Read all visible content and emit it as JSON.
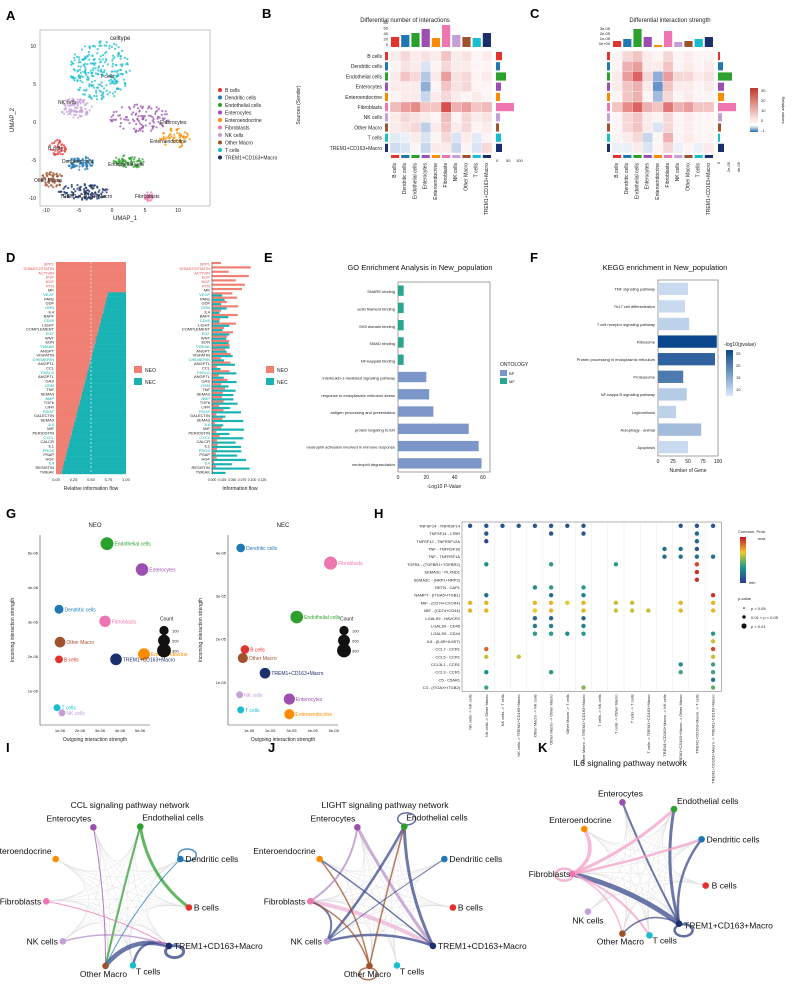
{
  "panels": [
    "A",
    "B",
    "C",
    "D",
    "E",
    "F",
    "G",
    "H",
    "I",
    "J",
    "K"
  ],
  "colors": {
    "B cells": "#e4332f",
    "Dendritic cells": "#1f77b4",
    "Endothelial cells": "#2ca02c",
    "Enterocytes": "#9b4fb0",
    "Enteroendocrine": "#ff8c00",
    "Fibroblasts": "#ef75b0",
    "NK cells": "#c5a0d8",
    "Other Macro": "#a0522d",
    "T cells": "#17becf",
    "TREM1+CD163+Macro": "#1a2f6b"
  },
  "cell_types": [
    "B cells",
    "Dendritic cells",
    "Endothelial cells",
    "Enterocytes",
    "Enteroendocrine",
    "Fibroblasts",
    "NK cells",
    "Other Macro",
    "T cells",
    "TREM1+CD163+Macro"
  ],
  "panelA": {
    "title": "celltype",
    "xlabel": "UMAP_1",
    "ylabel": "UMAP_2",
    "xticks": [
      "-10",
      "-5",
      "0",
      "5",
      "10"
    ],
    "yticks": [
      "-10",
      "-5",
      "0",
      "5",
      "10"
    ],
    "cluster_labels": [
      "T cells",
      "NK cells",
      "Enterocytes",
      "Enteroendocrine",
      "B cells",
      "Dendritic cells",
      "Endothelial cells",
      "Other Macro",
      "TREM1+CD163+Macro",
      "Fibroblasts"
    ]
  },
  "panelB": {
    "title": "Differential number of interactions",
    "ylabel": "Sources (Sender)",
    "top_ticks": [
      "80",
      "60",
      "40",
      "20",
      "0"
    ],
    "right_ticks": [
      "0",
      "50",
      "100"
    ]
  },
  "panelC": {
    "title": "Differential interaction strength",
    "top_ticks": [
      "3e-05",
      "2e-05",
      "1e-05",
      "0e+00"
    ],
    "right_ticks": [
      "0",
      "2e-05",
      "4e-05"
    ],
    "legend_title": "Relative values",
    "legend_ticks": [
      "30",
      "20",
      "10",
      "0",
      "-1"
    ]
  },
  "panelD": {
    "xlabel_left": "Relative information flow",
    "xlabel_right": "Information flow",
    "xticks_left": [
      "0.00",
      "0.25",
      "0.50",
      "0.75",
      "1.00"
    ],
    "xticks_right": [
      "0.000",
      "0.025",
      "0.050",
      "0.075",
      "0.100",
      "0.125"
    ],
    "legend": [
      "NEO",
      "NEC"
    ],
    "pathways": [
      "SPP1",
      "SOMATOSTATIN",
      "ACTIVIN",
      "EGF",
      "NGF",
      "PTN",
      "MK",
      "VEGF",
      "PARs",
      "GDF",
      "GRN",
      "IL4",
      "BAFF",
      "CD40",
      "LIGHT",
      "COMPLEMENT",
      "EGF",
      "WNT",
      "EDN",
      "TWEAK",
      "ANGPT",
      "VISFATIN",
      "CHEMERIN",
      "ANGPTL",
      "CCL",
      "FASLG",
      "ANGPTL",
      "GAS",
      "OSM",
      "TNF",
      "SEMA3",
      "BMP",
      "TGFb",
      "LIFR",
      "PDGF",
      "GALECTIN",
      "SEMA3",
      "IL6",
      "MIF",
      "PERIOSTIN",
      "CXCL",
      "CALCR",
      "IL1",
      "PROS",
      "PSAP",
      "HGF",
      "IL4",
      "RESISTIN",
      "TWEAK"
    ]
  },
  "panelE": {
    "title": "GO Enrichment Analysis in New_population",
    "xlabel": "-Log10 P-Value",
    "xticks": [
      "0",
      "20",
      "40",
      "60"
    ],
    "legend_title": "ONTOLOGY",
    "legend": [
      "BP",
      "MF"
    ],
    "terms": [
      {
        "name": "SNARE binding",
        "value": 4,
        "ont": "MF"
      },
      {
        "name": "actin filament binding",
        "value": 4,
        "ont": "MF"
      },
      {
        "name": "SH3 domain binding",
        "value": 4,
        "ont": "MF"
      },
      {
        "name": "SMAD binding",
        "value": 4,
        "ont": "MF"
      },
      {
        "name": "NF-kappaB binding",
        "value": 4,
        "ont": "MF"
      },
      {
        "name": "interleukin-1-mediated signaling pathway",
        "value": 20,
        "ont": "BP"
      },
      {
        "name": "response to endoplasmic reticulum stress",
        "value": 22,
        "ont": "BP"
      },
      {
        "name": "antigen processing and presentation",
        "value": 25,
        "ont": "BP"
      },
      {
        "name": "protein targeting to ER",
        "value": 50,
        "ont": "BP"
      },
      {
        "name": "neutrophil activation involved in immune response",
        "value": 57,
        "ont": "BP"
      },
      {
        "name": "neutrophil degranulation",
        "value": 59,
        "ont": "BP"
      }
    ]
  },
  "panelF": {
    "title": "KEGG enrichment in New_population",
    "xlabel": "Number of Gene",
    "xticks": [
      "0",
      "25",
      "50",
      "75",
      "100"
    ],
    "legend_title": "-log10(pvalue)",
    "legend_ticks": [
      "25",
      "20",
      "15",
      "10"
    ],
    "terms": [
      {
        "name": "TNF signaling pathway",
        "value": 50,
        "p": 7
      },
      {
        "name": "Th17 cell differentiation",
        "value": 45,
        "p": 7
      },
      {
        "name": "T cell receptor signaling pathway",
        "value": 52,
        "p": 8
      },
      {
        "name": "Ribosome",
        "value": 98,
        "p": 27
      },
      {
        "name": "Protein processing in endoplasmic reticulum",
        "value": 95,
        "p": 23
      },
      {
        "name": "Proteasome",
        "value": 42,
        "p": 20
      },
      {
        "name": "NF-kappa B signaling pathway",
        "value": 48,
        "p": 9
      },
      {
        "name": "Legionellosis",
        "value": 30,
        "p": 8
      },
      {
        "name": "Autophagy - animal",
        "value": 72,
        "p": 11
      },
      {
        "name": "Apoptosis",
        "value": 50,
        "p": 7
      }
    ]
  },
  "panelG": {
    "xlabel": "Outgoing interaction strength",
    "ylabel": "Incoming interaction strength",
    "legend_title": "Count",
    "legend_sizes": [
      "100",
      "200",
      "300"
    ],
    "neo": {
      "title": "NEO",
      "xticks": [
        "1e-06",
        "2e-06",
        "3e-06",
        "4e-06",
        "5e-06"
      ],
      "yticks": [
        "1e-06",
        "2e-06",
        "3e-06",
        "4e-06",
        "5e-06"
      ],
      "points": [
        {
          "name": "Endothelial cells",
          "x": 3.35,
          "y": 5.25,
          "count": 250
        },
        {
          "name": "Enterocytes",
          "x": 5.1,
          "y": 4.5,
          "count": 230
        },
        {
          "name": "Dendritic cells",
          "x": 0.95,
          "y": 3.35,
          "count": 90
        },
        {
          "name": "Fibroblasts",
          "x": 3.25,
          "y": 3.0,
          "count": 180
        },
        {
          "name": "Other Macro",
          "x": 1.0,
          "y": 2.4,
          "count": 150
        },
        {
          "name": "Enteroendocrine",
          "x": 5.2,
          "y": 2.05,
          "count": 200
        },
        {
          "name": "B cells",
          "x": 0.95,
          "y": 1.9,
          "count": 60
        },
        {
          "name": "TREM1+CD163+Macro",
          "x": 3.8,
          "y": 1.9,
          "count": 190
        },
        {
          "name": "T cells",
          "x": 0.85,
          "y": 0.5,
          "count": 40
        },
        {
          "name": "NK cells",
          "x": 1.1,
          "y": 0.35,
          "count": 40
        }
      ]
    },
    "nec": {
      "title": "NEC",
      "xticks": [
        "1e-05",
        "2e-05",
        "3e-05",
        "4e-05",
        "5e-05"
      ],
      "yticks": [
        "1e-05",
        "2e-05",
        "3e-05",
        "4e-05"
      ],
      "points": [
        {
          "name": "Dendritic cells",
          "x": 0.6,
          "y": 4.1,
          "count": 80
        },
        {
          "name": "Fibroblasts",
          "x": 4.85,
          "y": 3.75,
          "count": 260
        },
        {
          "name": "Endothelial cells",
          "x": 3.25,
          "y": 2.5,
          "count": 240
        },
        {
          "name": "B cells",
          "x": 0.8,
          "y": 1.75,
          "count": 80
        },
        {
          "name": "Other Macro",
          "x": 0.7,
          "y": 1.55,
          "count": 130
        },
        {
          "name": "TREM1+CD163+Macro",
          "x": 1.75,
          "y": 1.2,
          "count": 150
        },
        {
          "name": "NK cells",
          "x": 0.55,
          "y": 0.7,
          "count": 40
        },
        {
          "name": "Enterocytes",
          "x": 2.9,
          "y": 0.6,
          "count": 170
        },
        {
          "name": "T cells",
          "x": 0.6,
          "y": 0.35,
          "count": 40
        },
        {
          "name": "Enteroendocrine",
          "x": 2.9,
          "y": 0.25,
          "count": 130
        }
      ]
    }
  },
  "panelH": {
    "rows": [
      "TNFSF14 - TNFRSF14",
      "TNFSF14 - LTBR",
      "TNFSF12 - TNFRSF12A",
      "TNF - TNFRSF1B",
      "TNF - TNFRSF1A",
      "TGFB1 - (TGFBR1+TGFBR2)",
      "SEMA3C - PLXND1",
      "SEMA3C - (NRP1+NRP2)",
      "RETN - CAP1",
      "NAMPT - (ITGA5+ITGB1)",
      "MIF - (CD74+CXCR4)",
      "MIF - (CD74+CD44)",
      "LGALS9 - HAVCR2",
      "LGALS9 - CD45",
      "LGALS9 - CD44",
      "IL6 - (IL6R+IL6ST)",
      "CCL7 - CCR1",
      "CCL5 - CCR1",
      "CCL3L1 - CCR1",
      "CCL3 - CCR1",
      "C5 - C5AR1",
      "C3 - (ITGAX+ITGB2)"
    ],
    "cols": [
      "NK cells -> NK cells",
      "NK cells -> Other Macro",
      "NK cells -> T cells",
      "NK cells -> TREM1+CD163+Macro",
      "Other Macro -> NK cells",
      "Other Macro -> Other Macro",
      "Other Macro -> T cells",
      "Other Macro -> TREM1+CD163+Macro",
      "T cells -> NK cells",
      "T cells -> Other Macro",
      "T cells -> T cells",
      "T cells -> TREM1+CD163+Macro",
      "TREM1+CD163+Macro -> NK cells",
      "TREM1+CD163+Macro -> Other Macro",
      "TREM1+CD163+Macro -> T cells",
      "TREM1+CD163+Macro -> TREM1+CD163+Macro"
    ],
    "legend_title": "Commun. Prob.",
    "legend_max": "max",
    "legend_min": "min",
    "pvalue_title": "p-value",
    "pvalue_labels": [
      "p > 0.05",
      "0.01 < p < 0.05",
      "p < 0.01"
    ],
    "dots": [
      [
        0,
        0,
        0.1
      ],
      [
        0,
        1,
        0.1
      ],
      [
        0,
        2,
        0.1
      ],
      [
        0,
        3,
        0.1
      ],
      [
        0,
        4,
        0.1
      ],
      [
        0,
        5,
        0.1
      ],
      [
        0,
        6,
        0.1
      ],
      [
        0,
        7,
        0.1
      ],
      [
        0,
        13,
        0.1
      ],
      [
        0,
        14,
        0.1
      ],
      [
        0,
        15,
        0.1
      ],
      [
        1,
        1,
        0.1
      ],
      [
        1,
        5,
        0.1
      ],
      [
        1,
        7,
        0.1
      ],
      [
        1,
        14,
        0.15
      ],
      [
        2,
        1,
        0.05
      ],
      [
        2,
        14,
        0.15
      ],
      [
        3,
        12,
        0.2
      ],
      [
        3,
        13,
        0.2
      ],
      [
        3,
        14,
        0.1
      ],
      [
        4,
        12,
        0.2
      ],
      [
        4,
        13,
        0.2
      ],
      [
        4,
        14,
        0.2
      ],
      [
        4,
        15,
        0.2
      ],
      [
        5,
        1,
        0.3
      ],
      [
        5,
        5,
        0.35
      ],
      [
        5,
        9,
        0.35
      ],
      [
        5,
        14,
        0.9
      ],
      [
        6,
        14,
        0.95
      ],
      [
        7,
        14,
        0.95
      ],
      [
        8,
        4,
        0.3
      ],
      [
        8,
        5,
        0.35
      ],
      [
        8,
        7,
        0.35
      ],
      [
        9,
        1,
        0.2
      ],
      [
        9,
        5,
        0.2
      ],
      [
        9,
        7,
        0.25
      ],
      [
        9,
        15,
        0.95
      ],
      [
        10,
        0,
        0.7
      ],
      [
        10,
        1,
        0.7
      ],
      [
        10,
        4,
        0.7
      ],
      [
        10,
        5,
        0.7
      ],
      [
        10,
        6,
        0.65
      ],
      [
        10,
        7,
        0.7
      ],
      [
        10,
        9,
        0.6
      ],
      [
        10,
        10,
        0.6
      ],
      [
        10,
        13,
        0.7
      ],
      [
        10,
        15,
        0.7
      ],
      [
        11,
        0,
        0.7
      ],
      [
        11,
        1,
        0.7
      ],
      [
        11,
        4,
        0.65
      ],
      [
        11,
        5,
        0.7
      ],
      [
        11,
        7,
        0.7
      ],
      [
        11,
        9,
        0.6
      ],
      [
        11,
        10,
        0.6
      ],
      [
        11,
        11,
        0.6
      ],
      [
        11,
        13,
        0.7
      ],
      [
        11,
        15,
        0.7
      ],
      [
        12,
        4,
        0.15
      ],
      [
        12,
        5,
        0.15
      ],
      [
        12,
        7,
        0.15
      ],
      [
        13,
        4,
        0.25
      ],
      [
        13,
        5,
        0.25
      ],
      [
        13,
        7,
        0.25
      ],
      [
        14,
        4,
        0.35
      ],
      [
        14,
        5,
        0.35
      ],
      [
        14,
        6,
        0.3
      ],
      [
        14,
        7,
        0.35
      ],
      [
        14,
        15,
        0.35
      ],
      [
        15,
        15,
        0.6
      ],
      [
        16,
        1,
        0.85
      ],
      [
        16,
        15,
        0.9
      ],
      [
        17,
        1,
        0.6
      ],
      [
        17,
        3,
        0.6
      ],
      [
        17,
        15,
        0.6
      ],
      [
        18,
        13,
        0.3
      ],
      [
        18,
        15,
        0.4
      ],
      [
        19,
        1,
        0.3
      ],
      [
        19,
        5,
        0.35
      ],
      [
        19,
        13,
        0.4
      ],
      [
        19,
        15,
        0.4
      ],
      [
        20,
        15,
        0.2
      ],
      [
        21,
        1,
        0.4
      ],
      [
        21,
        7,
        0.5
      ],
      [
        21,
        15,
        0.45
      ]
    ]
  },
  "panelI": {
    "title": "CCL signaling pathway network"
  },
  "panelJ": {
    "title": "LIGHT signaling pathway network"
  },
  "panelK": {
    "title": "IL6 signaling pathway network"
  }
}
